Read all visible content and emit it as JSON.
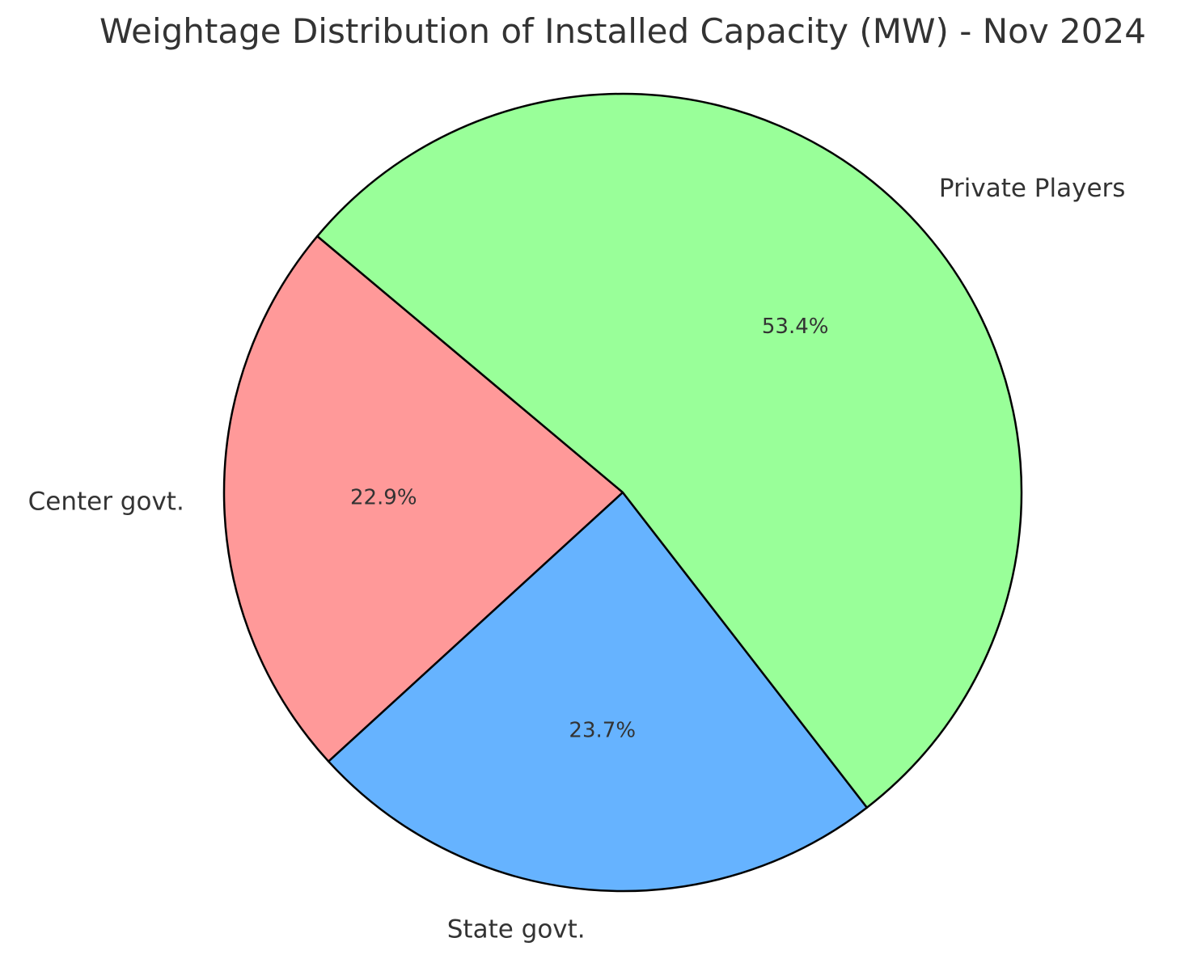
{
  "chart_data": {
    "type": "pie",
    "title": "Weightage Distribution of Installed Capacity (MW) - Nov 2024",
    "start_angle_deg": 140,
    "direction": "counterclockwise",
    "slices": [
      {
        "label": "Center govt.",
        "value": 22.9,
        "pct_label": "22.9%",
        "color": "#ff9999"
      },
      {
        "label": "State govt.",
        "value": 23.7,
        "pct_label": "23.7%",
        "color": "#66b3ff"
      },
      {
        "label": "Private Players",
        "value": 53.4,
        "pct_label": "53.4%",
        "color": "#99ff99"
      }
    ],
    "edge_color": "#000000"
  }
}
